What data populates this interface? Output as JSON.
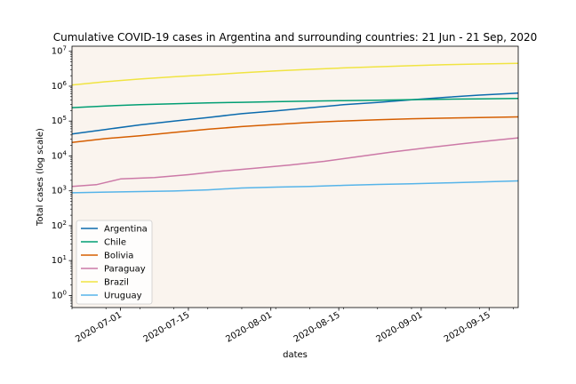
{
  "chart_data": {
    "type": "line",
    "title": "Cumulative COVID-19 cases in Argentina and surrounding countries: 21 Jun - 21 Sep, 2020",
    "xlabel": "dates",
    "ylabel": "Total cases (log scale)",
    "y_scale": "log",
    "ylim": [
      0.45,
      14000000
    ],
    "xlim": [
      "2020-06-21",
      "2020-09-21"
    ],
    "x_ticks": [
      "2020-07-01",
      "2020-07-15",
      "2020-08-01",
      "2020-08-15",
      "2020-09-01",
      "2020-09-15"
    ],
    "y_ticks": [
      {
        "value": 1,
        "mantissa": "10",
        "exp": "0"
      },
      {
        "value": 10,
        "mantissa": "10",
        "exp": "1"
      },
      {
        "value": 100,
        "mantissa": "10",
        "exp": "2"
      },
      {
        "value": 1000,
        "mantissa": "10",
        "exp": "3"
      },
      {
        "value": 10000,
        "mantissa": "10",
        "exp": "4"
      },
      {
        "value": 100000,
        "mantissa": "10",
        "exp": "5"
      },
      {
        "value": 1000000,
        "mantissa": "10",
        "exp": "6"
      },
      {
        "value": 10000000,
        "mantissa": "10",
        "exp": "7"
      }
    ],
    "grid": false,
    "legend_position": "lower-left",
    "background_color": "#faf4ee",
    "series": [
      {
        "name": "Argentina",
        "color": "#0b6bad",
        "points": [
          [
            "2020-06-21",
            42785
          ],
          [
            "2020-06-28",
            57744
          ],
          [
            "2020-07-05",
            77815
          ],
          [
            "2020-07-12",
            100166
          ],
          [
            "2020-07-19",
            126755
          ],
          [
            "2020-07-26",
            162526
          ],
          [
            "2020-08-02",
            196543
          ],
          [
            "2020-08-09",
            241811
          ],
          [
            "2020-08-16",
            294569
          ],
          [
            "2020-08-23",
            342154
          ],
          [
            "2020-08-30",
            408426
          ],
          [
            "2020-09-06",
            478792
          ],
          [
            "2020-09-13",
            555537
          ],
          [
            "2020-09-21",
            631365
          ]
        ]
      },
      {
        "name": "Chile",
        "color": "#009e73",
        "points": [
          [
            "2020-06-21",
            242355
          ],
          [
            "2020-06-28",
            271982
          ],
          [
            "2020-07-05",
            295532
          ],
          [
            "2020-07-12",
            315041
          ],
          [
            "2020-07-19",
            330930
          ],
          [
            "2020-07-26",
            345790
          ],
          [
            "2020-08-02",
            359731
          ],
          [
            "2020-08-09",
            373056
          ],
          [
            "2020-08-16",
            385946
          ],
          [
            "2020-08-23",
            397665
          ],
          [
            "2020-08-30",
            411726
          ],
          [
            "2020-09-06",
            424274
          ],
          [
            "2020-09-13",
            435000
          ],
          [
            "2020-09-21",
            446274
          ]
        ]
      },
      {
        "name": "Bolivia",
        "color": "#d55e00",
        "points": [
          [
            "2020-06-21",
            24388
          ],
          [
            "2020-06-28",
            31524
          ],
          [
            "2020-07-05",
            38071
          ],
          [
            "2020-07-12",
            47200
          ],
          [
            "2020-07-19",
            58138
          ],
          [
            "2020-07-26",
            69429
          ],
          [
            "2020-08-02",
            80153
          ],
          [
            "2020-08-09",
            91635
          ],
          [
            "2020-08-16",
            100483
          ],
          [
            "2020-08-23",
            108427
          ],
          [
            "2020-08-30",
            116598
          ],
          [
            "2020-09-06",
            121446
          ],
          [
            "2020-09-13",
            126456
          ],
          [
            "2020-09-21",
            131453
          ]
        ]
      },
      {
        "name": "Paraguay",
        "color": "#cc79a7",
        "points": [
          [
            "2020-06-21",
            1336
          ],
          [
            "2020-06-26",
            1500
          ],
          [
            "2020-07-01",
            2191
          ],
          [
            "2020-07-08",
            2400
          ],
          [
            "2020-07-15",
            2900
          ],
          [
            "2020-07-22",
            3700
          ],
          [
            "2020-07-29",
            4500
          ],
          [
            "2020-08-05",
            5500
          ],
          [
            "2020-08-12",
            7000
          ],
          [
            "2020-08-19",
            9500
          ],
          [
            "2020-08-26",
            13000
          ],
          [
            "2020-09-02",
            17000
          ],
          [
            "2020-09-09",
            22000
          ],
          [
            "2020-09-16",
            28000
          ],
          [
            "2020-09-21",
            33000
          ]
        ]
      },
      {
        "name": "Brazil",
        "color": "#f0e442",
        "points": [
          [
            "2020-06-21",
            1083341
          ],
          [
            "2020-06-28",
            1344143
          ],
          [
            "2020-07-05",
            1603055
          ],
          [
            "2020-07-12",
            1864681
          ],
          [
            "2020-07-19",
            2098389
          ],
          [
            "2020-07-26",
            2419091
          ],
          [
            "2020-08-02",
            2733677
          ],
          [
            "2020-08-09",
            3035422
          ],
          [
            "2020-08-16",
            3340197
          ],
          [
            "2020-08-23",
            3605783
          ],
          [
            "2020-08-30",
            3862311
          ],
          [
            "2020-09-06",
            4123000
          ],
          [
            "2020-09-13",
            4330455
          ],
          [
            "2020-09-21",
            4544629
          ]
        ]
      },
      {
        "name": "Uruguay",
        "color": "#56b4e9",
        "points": [
          [
            "2020-06-21",
            876
          ],
          [
            "2020-06-28",
            919
          ],
          [
            "2020-07-05",
            952
          ],
          [
            "2020-07-12",
            987
          ],
          [
            "2020-07-19",
            1064
          ],
          [
            "2020-07-26",
            1202
          ],
          [
            "2020-08-02",
            1279
          ],
          [
            "2020-08-09",
            1335
          ],
          [
            "2020-08-16",
            1437
          ],
          [
            "2020-08-23",
            1527
          ],
          [
            "2020-08-30",
            1595
          ],
          [
            "2020-09-06",
            1684
          ],
          [
            "2020-09-13",
            1800
          ],
          [
            "2020-09-21",
            1930
          ]
        ]
      }
    ]
  }
}
